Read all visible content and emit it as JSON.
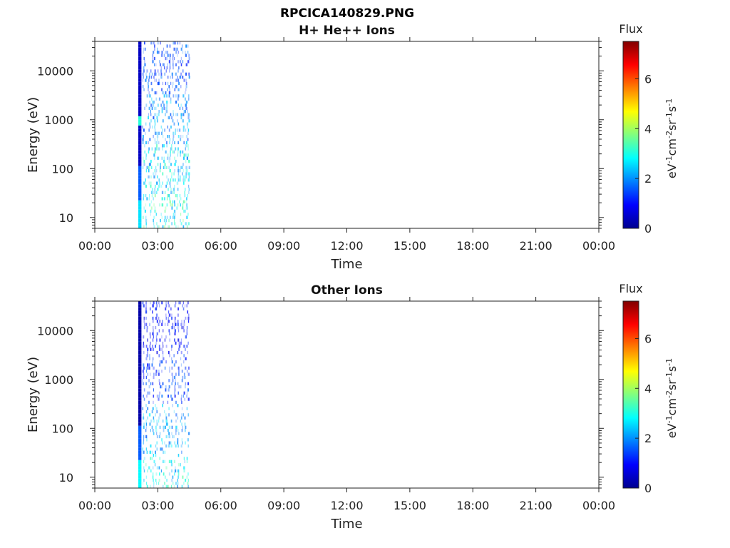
{
  "page_title": "RPCICA140829.PNG",
  "chart_data": [
    {
      "type": "heatmap",
      "title": "H+ He++ Ions",
      "xlabel": "Time",
      "ylabel": "Energy (eV)",
      "y_scale": "log",
      "ylim": [
        6,
        40000
      ],
      "xlim_hours": [
        0,
        24
      ],
      "x_tick_labels": [
        "00:00",
        "03:00",
        "06:00",
        "09:00",
        "12:00",
        "15:00",
        "18:00",
        "21:00",
        "00:00"
      ],
      "y_tick_labels": [
        "10",
        "100",
        "1000",
        "10000"
      ],
      "y_tick_values": [
        10,
        100,
        1000,
        10000
      ],
      "colorbar": {
        "title": "Flux",
        "label": "eV-1cm-2sr-1s-1",
        "range": [
          0,
          7.5
        ],
        "tick_labels": [
          "0",
          "2",
          "4",
          "6"
        ],
        "tick_values": [
          0,
          2,
          4,
          6
        ],
        "colormap": "jet"
      },
      "data_window_hours": [
        2.07,
        4.5
      ],
      "dense_column": {
        "start_hour": 2.07,
        "end_hour": 2.22,
        "low_energy_flux": 2.6,
        "bright_energy": 900,
        "bright_flux": 3.1,
        "high_energy_flux": 0.5
      },
      "sparse_column_hours": [
        2.3,
        2.42,
        2.55,
        2.68,
        2.8,
        2.93,
        3.05,
        3.18,
        3.3,
        3.42,
        3.55,
        3.68,
        3.8,
        3.93,
        4.05,
        4.18,
        4.3,
        4.42
      ],
      "flux_by_energy_band": {
        "above_3000_eV": 1.5,
        "300_to_3000_eV": 2.0,
        "30_to_300_eV": 2.6,
        "below_30_eV": 3.0
      }
    },
    {
      "type": "heatmap",
      "title": "Other Ions",
      "xlabel": "Time",
      "ylabel": "Energy (eV)",
      "y_scale": "log",
      "ylim": [
        6,
        40000
      ],
      "xlim_hours": [
        0,
        24
      ],
      "x_tick_labels": [
        "00:00",
        "03:00",
        "06:00",
        "09:00",
        "12:00",
        "15:00",
        "18:00",
        "21:00",
        "00:00"
      ],
      "y_tick_labels": [
        "10",
        "100",
        "1000",
        "10000"
      ],
      "y_tick_values": [
        10,
        100,
        1000,
        10000
      ],
      "colorbar": {
        "title": "Flux",
        "label": "eV-1cm-2sr-1s-1",
        "range": [
          0,
          7.5
        ],
        "tick_labels": [
          "0",
          "2",
          "4",
          "6"
        ],
        "tick_values": [
          0,
          2,
          4,
          6
        ],
        "colormap": "jet"
      },
      "data_window_hours": [
        2.07,
        4.5
      ],
      "dense_column": {
        "start_hour": 2.07,
        "end_hour": 2.22,
        "low_energy_flux": 2.8,
        "bright_energy": 0,
        "bright_flux": 0,
        "high_energy_flux": 0.3
      },
      "sparse_column_hours": [
        2.3,
        2.45,
        2.6,
        2.75,
        2.9,
        3.05,
        3.2,
        3.35,
        3.5,
        3.65,
        3.8,
        3.95,
        4.1,
        4.25,
        4.4
      ],
      "flux_by_energy_band": {
        "above_3000_eV": 1.0,
        "300_to_3000_eV": 1.4,
        "30_to_300_eV": 2.2,
        "below_30_eV": 2.7
      }
    }
  ]
}
